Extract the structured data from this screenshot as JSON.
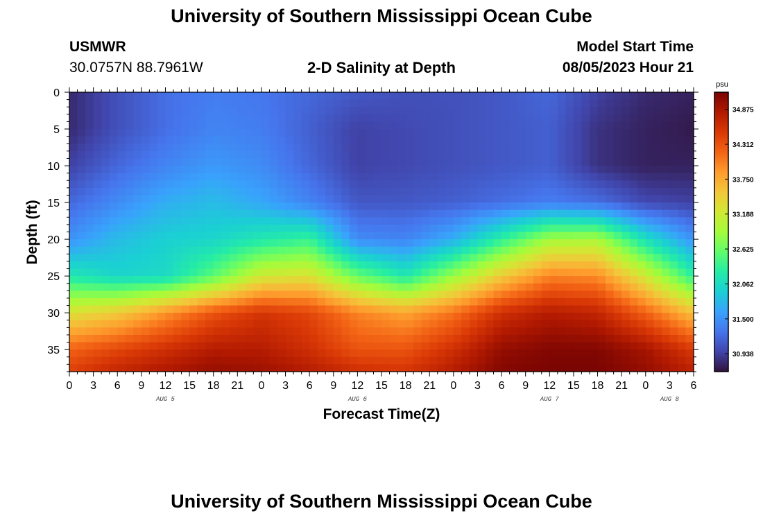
{
  "header": {
    "title": "University of Southern Mississippi Ocean Cube",
    "station_name": "USMWR",
    "station_coords": "30.0757N  88.7961W",
    "plot_title": "2-D Salinity at Depth",
    "model_start_label": "Model Start Time",
    "model_start_value": "08/05/2023 Hour 21"
  },
  "footer": {
    "title": "University of Southern Mississippi Ocean Cube"
  },
  "colors": {
    "scale": [
      "#30123b",
      "#4145ab",
      "#4675ed",
      "#39a2fc",
      "#1bcfd4",
      "#24eca6",
      "#61fc6c",
      "#a4fc3b",
      "#d1e834",
      "#f3c63a",
      "#fe9b2d",
      "#f36315",
      "#d93806",
      "#b11901",
      "#7a0402"
    ]
  },
  "chart_data": {
    "type": "heatmap",
    "title": "2-D Salinity at Depth",
    "xlabel": "Forecast Time(Z)",
    "ylabel": "Depth (ft)",
    "x_tick_labels": [
      "0",
      "3",
      "6",
      "9",
      "12",
      "15",
      "18",
      "21",
      "0",
      "3",
      "6",
      "9",
      "12",
      "15",
      "18",
      "21",
      "0",
      "3",
      "6",
      "9",
      "12",
      "15",
      "18",
      "21",
      "0",
      "3",
      "6"
    ],
    "x_range_hours": [
      0,
      78
    ],
    "day_labels": [
      {
        "label": "AUG 5",
        "hour": 12
      },
      {
        "label": "AUG 6",
        "hour": 36
      },
      {
        "label": "AUG 7",
        "hour": 60
      },
      {
        "label": "AUG 8",
        "hour": 75
      }
    ],
    "y_ticks": [
      0,
      5,
      10,
      15,
      20,
      25,
      30,
      35
    ],
    "y_range_ft": [
      0,
      38
    ],
    "colorbar": {
      "unit": "psu",
      "min": 30.65,
      "max": 35.15,
      "tick_values": [
        "34.875",
        "34.312",
        "33.750",
        "33.188",
        "32.625",
        "32.062",
        "31.500",
        "30.938"
      ]
    },
    "salinity_field": {
      "description": "Salinity (psu) at profile times (hours since start) and depths (ft)",
      "times": [
        0,
        6,
        12,
        18,
        24,
        30,
        36,
        42,
        48,
        54,
        60,
        66,
        72,
        78
      ],
      "depths": [
        0,
        5,
        10,
        15,
        20,
        25,
        30,
        35,
        38
      ],
      "values": [
        [
          30.8,
          31.05,
          31.25,
          31.35,
          31.3,
          31.2,
          31.1,
          31.05,
          31.05,
          31.1,
          31.2,
          30.95,
          30.8,
          30.75
        ],
        [
          30.8,
          31.05,
          31.25,
          31.4,
          31.35,
          31.15,
          30.95,
          31.0,
          31.05,
          31.1,
          31.15,
          30.85,
          30.75,
          30.7
        ],
        [
          30.95,
          31.2,
          31.4,
          31.55,
          31.45,
          31.2,
          30.95,
          31.0,
          31.05,
          31.1,
          31.15,
          30.85,
          30.75,
          30.75
        ],
        [
          31.2,
          31.45,
          31.7,
          31.8,
          31.65,
          31.4,
          31.1,
          31.1,
          31.15,
          31.25,
          31.35,
          31.25,
          31.0,
          30.95
        ],
        [
          31.5,
          31.8,
          31.95,
          32.0,
          32.2,
          32.35,
          31.45,
          31.4,
          31.7,
          32.3,
          32.9,
          32.95,
          32.1,
          31.5
        ],
        [
          32.2,
          32.0,
          32.05,
          32.55,
          33.2,
          33.3,
          32.6,
          32.2,
          32.85,
          33.5,
          34.0,
          33.95,
          33.2,
          32.3
        ],
        [
          33.3,
          33.5,
          33.9,
          34.3,
          34.55,
          34.4,
          34.0,
          33.8,
          34.1,
          34.6,
          34.8,
          34.7,
          34.2,
          33.6
        ],
        [
          34.2,
          34.4,
          34.6,
          34.8,
          34.8,
          34.6,
          34.3,
          34.3,
          34.6,
          35.0,
          35.1,
          35.1,
          34.9,
          34.5
        ],
        [
          34.45,
          34.7,
          34.85,
          35.0,
          34.95,
          34.8,
          34.6,
          34.55,
          34.8,
          35.1,
          35.15,
          35.15,
          35.0,
          34.75
        ]
      ]
    }
  }
}
